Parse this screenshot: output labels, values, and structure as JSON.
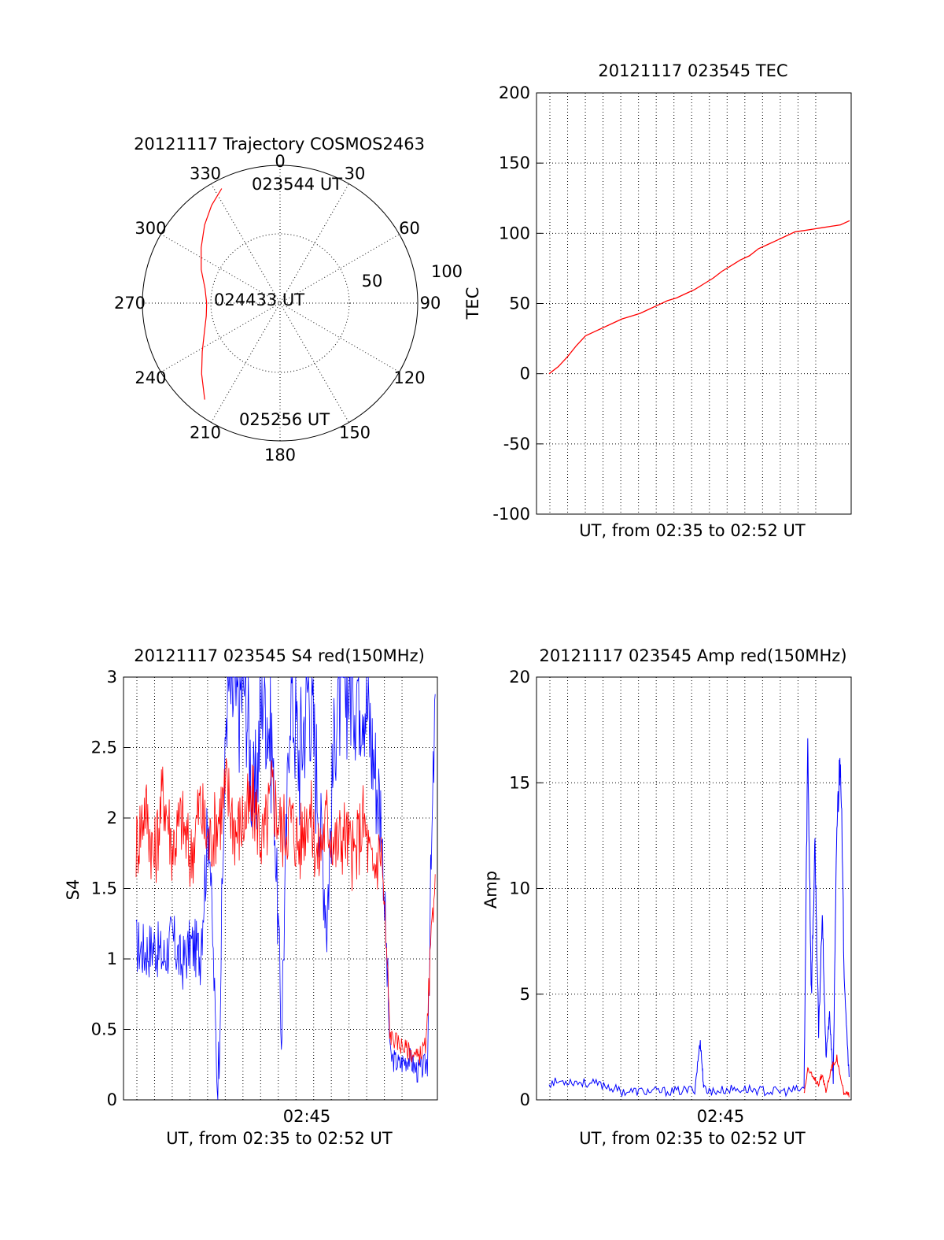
{
  "chart_data": [
    {
      "type": "polar",
      "title": "20121117 Trajectory COSMOS2463",
      "azimuth_labels": [
        "0",
        "30",
        "60",
        "90",
        "120",
        "150",
        "180",
        "210",
        "240",
        "270",
        "300",
        "330"
      ],
      "radial_labels": [
        "50",
        "100"
      ],
      "annotations": [
        "023544 UT",
        "024433 UT",
        "025256 UT"
      ],
      "trajectory": {
        "color": "#ff0000",
        "points_az_el": [
          [
            333,
            6
          ],
          [
            325,
            12
          ],
          [
            316,
            19
          ],
          [
            305,
            27
          ],
          [
            293,
            34
          ],
          [
            281,
            40
          ],
          [
            270,
            42
          ],
          [
            260,
            41
          ],
          [
            249,
            37
          ],
          [
            238,
            30
          ],
          [
            228,
            21
          ],
          [
            218,
            10
          ]
        ]
      }
    },
    {
      "type": "line",
      "title": "20121117 023545 TEC",
      "xlabel": "UT, from 02:35 to 02:52 UT",
      "ylabel": "TEC",
      "ylim": [
        -100,
        200
      ],
      "yticks": [
        "200",
        "150",
        "100",
        "50",
        "0",
        "-50",
        "-100"
      ],
      "series": [
        {
          "color": "#ff0000",
          "x": [
            0,
            0.5,
            1,
            1.5,
            2,
            2.5,
            3,
            3.5,
            4,
            4.5,
            5,
            5.5,
            6,
            6.5,
            7,
            7.5,
            8,
            8.5,
            9,
            9.5,
            10,
            10.5,
            11,
            11.5,
            12,
            12.5,
            13,
            13.5,
            14,
            14.5,
            15,
            15.5,
            16,
            16.5
          ],
          "values": [
            0,
            5,
            12,
            20,
            27,
            30,
            33,
            36,
            39,
            41,
            43,
            46,
            49,
            52,
            54,
            57,
            60,
            64,
            68,
            73,
            77,
            81,
            84,
            89,
            92,
            95,
            98,
            101,
            102,
            103,
            104,
            105,
            106,
            109
          ]
        }
      ]
    },
    {
      "type": "line",
      "title": "20121117 023545 S4 red(150MHz)",
      "xlabel": "UT, from 02:35 to 02:52 UT",
      "ylabel": "S4",
      "ylim": [
        0,
        3
      ],
      "yticks": [
        "3",
        "2.5",
        "2",
        "1.5",
        "1",
        "0.5",
        "0"
      ],
      "xticks": [
        "02:45"
      ],
      "series": [
        {
          "color": "#0000ff",
          "x": [
            0,
            0.5,
            1,
            1.5,
            2,
            2.5,
            3,
            3.5,
            4,
            4.5,
            5,
            5.5,
            6,
            6.5,
            7,
            7.5,
            8,
            8.5,
            9,
            9.5,
            10,
            10.5,
            11,
            11.5,
            12,
            12.5,
            13,
            13.5,
            14,
            14.5,
            15,
            15.5,
            16,
            16.5
          ],
          "values": [
            1.1,
            1.05,
            1.1,
            1.0,
            1.15,
            0.95,
            1.1,
            1.05,
            2.0,
            0.0,
            3.0,
            2.8,
            3.0,
            2.0,
            3.0,
            2.5,
            0.5,
            3.0,
            2.4,
            3.0,
            2.2,
            1.3,
            2.8,
            3.0,
            3.0,
            3.0,
            2.5,
            2.0,
            0.3,
            0.25,
            0.3,
            0.2,
            0.25,
            3.0
          ]
        },
        {
          "color": "#ff0000",
          "x": [
            0,
            0.5,
            1,
            1.5,
            2,
            2.5,
            3,
            3.5,
            4,
            4.5,
            5,
            5.5,
            6,
            6.5,
            7,
            7.5,
            8,
            8.5,
            9,
            9.5,
            10,
            10.5,
            11,
            11.5,
            12,
            12.5,
            13,
            13.5,
            14,
            14.5,
            15,
            15.5,
            16,
            16.5
          ],
          "values": [
            1.8,
            2.1,
            1.7,
            2.2,
            1.8,
            2.0,
            1.7,
            2.1,
            1.8,
            2.0,
            2.2,
            1.9,
            2.0,
            2.1,
            1.8,
            2.2,
            1.9,
            2.0,
            1.8,
            2.1,
            1.7,
            2.0,
            1.8,
            1.9,
            1.7,
            2.0,
            1.6,
            1.8,
            0.45,
            0.4,
            0.35,
            0.3,
            0.4,
            1.8
          ]
        }
      ]
    },
    {
      "type": "line",
      "title": "20121117 023545 Amp red(150MHz)",
      "xlabel": "UT, from 02:35 to 02:52 UT",
      "ylabel": "Amp",
      "ylim": [
        0,
        20
      ],
      "yticks": [
        "20",
        "15",
        "10",
        "5",
        "0"
      ],
      "xticks": [
        "02:45"
      ],
      "series": [
        {
          "color": "#0000ff",
          "x": [
            0,
            1,
            2,
            3,
            4,
            5,
            6,
            7,
            8,
            8.3,
            8.5,
            9,
            10,
            11,
            12,
            13,
            14,
            14.2,
            14.4,
            14.6,
            14.8,
            15,
            15.2,
            15.4,
            15.6,
            15.8,
            16,
            16.2,
            16.5
          ],
          "values": [
            0.8,
            0.9,
            0.8,
            0.7,
            0.4,
            0.4,
            0.4,
            0.4,
            0.5,
            2.8,
            0.5,
            0.4,
            0.5,
            0.5,
            0.4,
            0.4,
            0.5,
            17.0,
            5.0,
            12.0,
            3.0,
            9.0,
            2.0,
            4.0,
            1.0,
            13.0,
            16.5,
            6.0,
            0.5
          ]
        },
        {
          "color": "#ff0000",
          "x": [
            14,
            14.2,
            14.5,
            14.8,
            15,
            15.2,
            15.5,
            15.8,
            16,
            16.2,
            16.5
          ],
          "values": [
            0.3,
            1.5,
            1.0,
            0.8,
            1.2,
            0.4,
            1.5,
            2.0,
            1.0,
            0.3,
            0.2
          ]
        }
      ]
    }
  ]
}
